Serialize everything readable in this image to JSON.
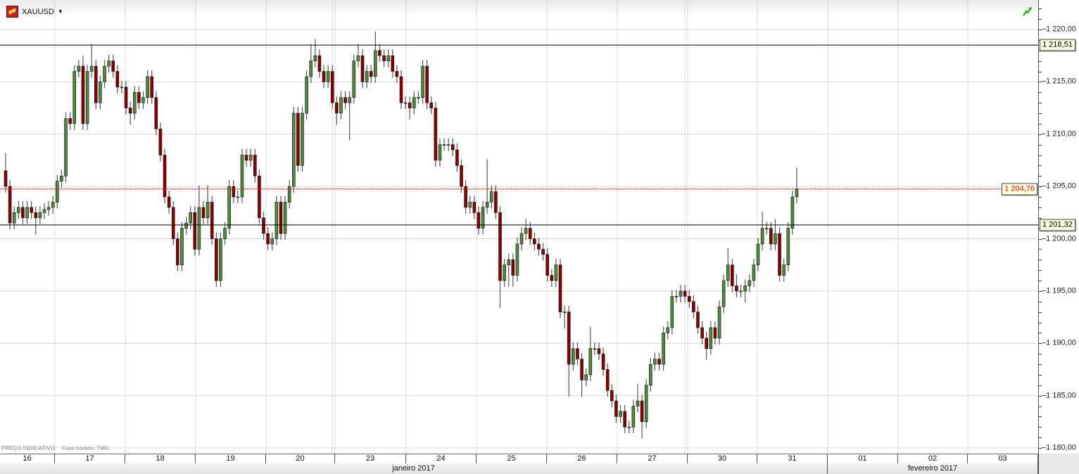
{
  "header": {
    "symbol": "XAUUSD",
    "symbol_icon": "gold-bar-icon",
    "trend_icon": "trend-up-icon"
  },
  "footer_note": {
    "price_type": "PREÇO INDICATIVO",
    "timezone": "Fuso horário: TMG"
  },
  "colors": {
    "up": "#4f8a3c",
    "down": "#8b0000",
    "current_line": "#ff0000",
    "level_line": "#000000",
    "grid": "#d8d8d8"
  },
  "levels": [
    {
      "value": 1218.51,
      "label": "1 218,51",
      "style": "solid"
    },
    {
      "value": 1201.32,
      "label": "1 201,32",
      "style": "solid"
    },
    {
      "value": 1204.76,
      "label": "1 204,76",
      "style": "dotted-current"
    }
  ],
  "x_axis": {
    "days": [
      "16",
      "17",
      "18",
      "19",
      "20",
      "23",
      "24",
      "25",
      "26",
      "27",
      "30",
      "31",
      "01",
      "02",
      "03"
    ],
    "months": [
      "janeiro 2017",
      "fevereiro 2017"
    ]
  },
  "chart_data": {
    "type": "candlestick",
    "ylim": [
      1180,
      1220
    ],
    "y_ticks": [
      {
        "value": 1220,
        "label": "1 220,00"
      },
      {
        "value": 1215,
        "label": "1 215,00"
      },
      {
        "value": 1210,
        "label": "1 210,00"
      },
      {
        "value": 1205,
        "label": "1 205,00"
      },
      {
        "value": 1200,
        "label": "1 200,00"
      },
      {
        "value": 1195,
        "label": "1 195,00"
      },
      {
        "value": 1190,
        "label": "1 190,00"
      },
      {
        "value": 1185,
        "label": "1 185,00"
      },
      {
        "value": 1180,
        "label": "1 180,00"
      }
    ],
    "grid": true,
    "ohlc": [
      [
        1206.5,
        1208.2,
        1204.4,
        1205
      ],
      [
        1205,
        1205.6,
        1200.9,
        1201.5
      ],
      [
        1201.5,
        1203.1,
        1200.9,
        1202.5
      ],
      [
        1202.5,
        1203.6,
        1201.9,
        1203
      ],
      [
        1203,
        1203.6,
        1201.4,
        1202
      ],
      [
        1202,
        1203.6,
        1201.4,
        1203
      ],
      [
        1203,
        1203.6,
        1201.9,
        1202.5
      ],
      [
        1202.5,
        1203.1,
        1200.4,
        1202
      ],
      [
        1202,
        1203.1,
        1201.4,
        1202.5
      ],
      [
        1202.5,
        1203.4,
        1201.9,
        1202.8
      ],
      [
        1202.8,
        1203.6,
        1202.2,
        1203
      ],
      [
        1203,
        1204.1,
        1202.4,
        1203.5
      ],
      [
        1203.5,
        1206.1,
        1202.9,
        1205.5
      ],
      [
        1205.5,
        1206.6,
        1204.9,
        1206
      ],
      [
        1206,
        1212.1,
        1205.4,
        1211.5
      ],
      [
        1211.5,
        1212.1,
        1210.4,
        1211
      ],
      [
        1211,
        1216.6,
        1210.4,
        1216
      ],
      [
        1216,
        1217.1,
        1215.4,
        1216.5
      ],
      [
        1216.5,
        1217.5,
        1210.4,
        1211
      ],
      [
        1211,
        1216.6,
        1210.4,
        1216
      ],
      [
        1216,
        1218.6,
        1215.4,
        1216.5
      ],
      [
        1216.5,
        1217.1,
        1212.4,
        1213
      ],
      [
        1213,
        1215.6,
        1212.4,
        1215
      ],
      [
        1215,
        1217.1,
        1214.4,
        1216.5
      ],
      [
        1216.5,
        1217.6,
        1215.9,
        1217
      ],
      [
        1217,
        1217.6,
        1215.4,
        1216
      ],
      [
        1216,
        1216.6,
        1213.9,
        1214.5
      ],
      [
        1214.5,
        1215.1,
        1213.9,
        1214.5
      ],
      [
        1214.5,
        1215.1,
        1211.9,
        1212.5
      ],
      [
        1212.5,
        1213.1,
        1210.9,
        1212
      ],
      [
        1212,
        1214.6,
        1211.4,
        1214
      ],
      [
        1214,
        1214.6,
        1212.4,
        1213
      ],
      [
        1213,
        1214.1,
        1212.4,
        1213.5
      ],
      [
        1213.5,
        1216.1,
        1212.9,
        1215.5
      ],
      [
        1215.5,
        1216.1,
        1212.9,
        1213.5
      ],
      [
        1213.5,
        1214.1,
        1209.9,
        1210.5
      ],
      [
        1210.5,
        1211.1,
        1207.4,
        1208
      ],
      [
        1208,
        1208.6,
        1203.4,
        1204
      ],
      [
        1204,
        1204.6,
        1202.4,
        1203
      ],
      [
        1203,
        1203.6,
        1199.4,
        1200
      ],
      [
        1200,
        1200.6,
        1196.9,
        1197.5
      ],
      [
        1197.5,
        1201.6,
        1196.9,
        1201
      ],
      [
        1201,
        1202.1,
        1200.4,
        1201.5
      ],
      [
        1201.5,
        1203.1,
        1200.9,
        1202.5
      ],
      [
        1202.5,
        1203.1,
        1198.4,
        1199
      ],
      [
        1199,
        1205.1,
        1198.4,
        1203
      ],
      [
        1203,
        1203.6,
        1201.4,
        1202
      ],
      [
        1202,
        1205.1,
        1201.4,
        1203.5
      ],
      [
        1203.5,
        1204.1,
        1199.4,
        1200
      ],
      [
        1200,
        1200.6,
        1195.4,
        1196
      ],
      [
        1196,
        1200.6,
        1195.4,
        1200
      ],
      [
        1200,
        1201.6,
        1199.4,
        1201
      ],
      [
        1201,
        1205.6,
        1200.4,
        1205
      ],
      [
        1205,
        1205.6,
        1203.4,
        1204
      ],
      [
        1204,
        1204.6,
        1203.4,
        1204
      ],
      [
        1204,
        1208.6,
        1203.4,
        1208
      ],
      [
        1208,
        1208.6,
        1206.9,
        1207.5
      ],
      [
        1207.5,
        1208.6,
        1206.9,
        1208
      ],
      [
        1208,
        1208.6,
        1205.4,
        1206
      ],
      [
        1206,
        1206.6,
        1201.4,
        1202
      ],
      [
        1202,
        1202.6,
        1199.9,
        1200.5
      ],
      [
        1200.5,
        1201.1,
        1198.9,
        1199.5
      ],
      [
        1199.5,
        1200.6,
        1198.9,
        1200
      ],
      [
        1200,
        1204.1,
        1199.4,
        1203.5
      ],
      [
        1203.5,
        1204.1,
        1199.9,
        1200.5
      ],
      [
        1200.5,
        1204.1,
        1199.9,
        1203.5
      ],
      [
        1203.5,
        1205.6,
        1202.9,
        1205
      ],
      [
        1205,
        1212.6,
        1204.4,
        1212
      ],
      [
        1212,
        1212.6,
        1206.4,
        1207
      ],
      [
        1207,
        1212.6,
        1206.4,
        1212
      ],
      [
        1212,
        1216.1,
        1211.4,
        1215.5
      ],
      [
        1215.5,
        1218.6,
        1214.9,
        1217
      ],
      [
        1217,
        1219.1,
        1216.4,
        1217.5
      ],
      [
        1217.5,
        1218.1,
        1215.4,
        1216
      ],
      [
        1216,
        1216.6,
        1214.4,
        1215
      ],
      [
        1215,
        1216.6,
        1214.4,
        1216
      ],
      [
        1216,
        1216.6,
        1212.4,
        1213
      ],
      [
        1213,
        1213.6,
        1210.9,
        1212
      ],
      [
        1212,
        1214.1,
        1211.4,
        1213.5
      ],
      [
        1213.5,
        1214.1,
        1212.4,
        1213
      ],
      [
        1213,
        1214.1,
        1209.4,
        1213.5
      ],
      [
        1213.5,
        1217.6,
        1212.9,
        1217
      ],
      [
        1217,
        1218.6,
        1216.4,
        1217.5
      ],
      [
        1217.5,
        1218.1,
        1214.4,
        1215
      ],
      [
        1215,
        1216.6,
        1214.4,
        1216
      ],
      [
        1216,
        1216.6,
        1214.9,
        1215.5
      ],
      [
        1215.5,
        1219.8,
        1214.9,
        1218
      ],
      [
        1218,
        1218.6,
        1216.9,
        1217.5
      ],
      [
        1217.5,
        1218.1,
        1216.4,
        1217
      ],
      [
        1217,
        1218.1,
        1216.4,
        1217.5
      ],
      [
        1217.5,
        1218.1,
        1215.4,
        1216
      ],
      [
        1216,
        1216.6,
        1214.9,
        1215.5
      ],
      [
        1215.5,
        1216.1,
        1212.4,
        1213
      ],
      [
        1213,
        1213.6,
        1212.4,
        1213
      ],
      [
        1213,
        1213.6,
        1211.4,
        1212.5
      ],
      [
        1212.5,
        1214.1,
        1211.9,
        1213.5
      ],
      [
        1213.5,
        1214.1,
        1212.9,
        1213.5
      ],
      [
        1213.5,
        1217.1,
        1212.9,
        1216.5
      ],
      [
        1216.5,
        1217.1,
        1212.4,
        1213
      ],
      [
        1213,
        1213.6,
        1211.9,
        1212.5
      ],
      [
        1212.5,
        1213.1,
        1206.9,
        1207.5
      ],
      [
        1207.5,
        1209.6,
        1206.9,
        1209
      ],
      [
        1209,
        1209.6,
        1208.4,
        1209
      ],
      [
        1209,
        1209.6,
        1208.4,
        1209
      ],
      [
        1209,
        1209.6,
        1207.9,
        1208.5
      ],
      [
        1208.5,
        1209.1,
        1206.4,
        1207
      ],
      [
        1207,
        1207.6,
        1204.4,
        1205
      ],
      [
        1205,
        1205.6,
        1202.4,
        1203
      ],
      [
        1203,
        1204.1,
        1202.4,
        1203.5
      ],
      [
        1203.5,
        1204.1,
        1201.9,
        1202.5
      ],
      [
        1202.5,
        1203.1,
        1200.4,
        1201
      ],
      [
        1201,
        1203.6,
        1200.4,
        1203
      ],
      [
        1203,
        1207.6,
        1202.4,
        1203.5
      ],
      [
        1203.5,
        1205.1,
        1202.9,
        1204.5
      ],
      [
        1204.5,
        1205.1,
        1201.9,
        1202.5
      ],
      [
        1202.5,
        1203.1,
        1193.4,
        1196
      ],
      [
        1196,
        1198.1,
        1195.4,
        1197.5
      ],
      [
        1197.5,
        1198.6,
        1195.4,
        1198
      ],
      [
        1198,
        1198.6,
        1195.4,
        1196.5
      ],
      [
        1196.5,
        1200.1,
        1195.9,
        1199.5
      ],
      [
        1199.5,
        1201.1,
        1198.9,
        1200.5
      ],
      [
        1200.5,
        1201.9,
        1199.9,
        1201
      ],
      [
        1201,
        1201.6,
        1199.4,
        1200
      ],
      [
        1200,
        1200.6,
        1198.9,
        1199.5
      ],
      [
        1199.5,
        1200.1,
        1198.4,
        1199
      ],
      [
        1199,
        1199.6,
        1197.9,
        1198.5
      ],
      [
        1198.5,
        1199.1,
        1195.9,
        1196.5
      ],
      [
        1196.5,
        1197.1,
        1195.4,
        1196
      ],
      [
        1196,
        1198.1,
        1195.4,
        1197.5
      ],
      [
        1197.5,
        1198.1,
        1192.4,
        1193
      ],
      [
        1193,
        1193.6,
        1191.4,
        1193
      ],
      [
        1193,
        1193.6,
        1184.9,
        1188
      ],
      [
        1188,
        1190.1,
        1187.4,
        1189.5
      ],
      [
        1189.5,
        1190.1,
        1187.9,
        1188.5
      ],
      [
        1188.5,
        1189.1,
        1184.9,
        1186.5
      ],
      [
        1186.5,
        1187.6,
        1185.9,
        1187
      ],
      [
        1187,
        1191.6,
        1186.4,
        1189.5
      ],
      [
        1189.5,
        1190.1,
        1188.9,
        1189.5
      ],
      [
        1189.5,
        1190.1,
        1188.4,
        1189
      ],
      [
        1189,
        1189.6,
        1186.9,
        1187.5
      ],
      [
        1187.5,
        1188.1,
        1184.9,
        1185.5
      ],
      [
        1185.5,
        1186.1,
        1183.9,
        1184.5
      ],
      [
        1184.5,
        1185.1,
        1182.4,
        1183
      ],
      [
        1183,
        1184.1,
        1182.4,
        1183.5
      ],
      [
        1183.5,
        1184.1,
        1181.4,
        1182
      ],
      [
        1182,
        1182.6,
        1181.4,
        1182
      ],
      [
        1182,
        1184.6,
        1181.4,
        1184
      ],
      [
        1184,
        1186.1,
        1183.4,
        1184.5
      ],
      [
        1184.5,
        1185.1,
        1180.9,
        1182.5
      ],
      [
        1182.5,
        1186.6,
        1181.9,
        1186
      ],
      [
        1186,
        1188.6,
        1185.4,
        1188
      ],
      [
        1188,
        1189.1,
        1187.4,
        1188.5
      ],
      [
        1188.5,
        1189.1,
        1187.4,
        1188
      ],
      [
        1188,
        1191.6,
        1187.4,
        1191
      ],
      [
        1191,
        1192.1,
        1190.4,
        1191.5
      ],
      [
        1191.5,
        1195.1,
        1190.9,
        1194.5
      ],
      [
        1194.5,
        1195.1,
        1193.9,
        1194.5
      ],
      [
        1194.5,
        1195.6,
        1193.9,
        1195
      ],
      [
        1195,
        1195.6,
        1193.9,
        1194.5
      ],
      [
        1194.5,
        1195.1,
        1193.4,
        1194
      ],
      [
        1194,
        1194.6,
        1192.4,
        1193
      ],
      [
        1193,
        1193.6,
        1190.9,
        1191.5
      ],
      [
        1191.5,
        1192.1,
        1189.9,
        1190.5
      ],
      [
        1190.5,
        1191.1,
        1188.4,
        1189.5
      ],
      [
        1189.5,
        1192.1,
        1188.9,
        1191.5
      ],
      [
        1191.5,
        1192.1,
        1189.9,
        1190.5
      ],
      [
        1190.5,
        1194.1,
        1189.9,
        1193.5
      ],
      [
        1193.5,
        1196.6,
        1192.9,
        1196
      ],
      [
        1196,
        1199.1,
        1195.4,
        1197.5
      ],
      [
        1197.5,
        1198.1,
        1194.9,
        1195.5
      ],
      [
        1195.5,
        1196.6,
        1194.4,
        1195
      ],
      [
        1195,
        1195.6,
        1194.4,
        1195
      ],
      [
        1195,
        1196.1,
        1193.9,
        1195.5
      ],
      [
        1195.5,
        1196.6,
        1194.9,
        1196
      ],
      [
        1196,
        1198.1,
        1195.4,
        1197.5
      ],
      [
        1197.5,
        1200.1,
        1196.9,
        1199.5
      ],
      [
        1199.5,
        1202.6,
        1198.9,
        1201
      ],
      [
        1201,
        1201.6,
        1200.4,
        1201
      ],
      [
        1201,
        1201.6,
        1198.9,
        1199.5
      ],
      [
        1199.5,
        1201.9,
        1198.9,
        1200.5
      ],
      [
        1200.5,
        1201.1,
        1195.9,
        1196.5
      ],
      [
        1196.5,
        1198.1,
        1195.9,
        1197.5
      ],
      [
        1197.5,
        1201.6,
        1196.9,
        1201
      ],
      [
        1201,
        1204.6,
        1200.4,
        1204
      ],
      [
        1204,
        1206.8,
        1203.4,
        1204.76
      ]
    ]
  }
}
